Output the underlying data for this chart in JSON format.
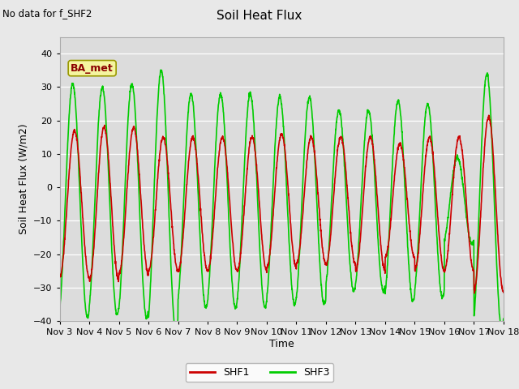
{
  "title": "Soil Heat Flux",
  "ylabel": "Soil Heat Flux (W/m2)",
  "xlabel": "Time",
  "no_data_text": "No data for f_SHF2",
  "annotation": "BA_met",
  "ylim": [
    -40,
    45
  ],
  "fig_bg_color": "#e8e8e8",
  "plot_bg_color": "#dcdcdc",
  "shf1_color": "#cc0000",
  "shf3_color": "#00cc00",
  "line_width": 1.2,
  "xtick_labels": [
    "Nov 3",
    "Nov 4",
    "Nov 5",
    "Nov 6",
    "Nov 7",
    "Nov 8",
    "Nov 9",
    "Nov 10",
    "Nov 11",
    "Nov 12",
    "Nov 13",
    "Nov 14",
    "Nov 15",
    "Nov 16",
    "Nov 17",
    "Nov 18"
  ],
  "num_days": 15,
  "points_per_day": 144
}
